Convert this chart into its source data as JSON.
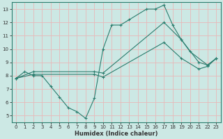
{
  "xlabel": "Humidex (Indice chaleur)",
  "bg_color": "#cce8e4",
  "grid_color": "#e8b8b8",
  "line_color": "#2a7d6e",
  "xlim": [
    -0.5,
    23.5
  ],
  "ylim": [
    4.5,
    13.5
  ],
  "xticks": [
    0,
    1,
    2,
    3,
    4,
    5,
    6,
    7,
    8,
    9,
    10,
    11,
    12,
    13,
    14,
    15,
    16,
    17,
    18,
    19,
    20,
    21,
    22,
    23
  ],
  "yticks": [
    5,
    6,
    7,
    8,
    9,
    10,
    11,
    12,
    13
  ],
  "line1_x": [
    0,
    1,
    2,
    3,
    4,
    5,
    6,
    7,
    8,
    9,
    10,
    11,
    12,
    13,
    15,
    16,
    17,
    18,
    19,
    20,
    22,
    23
  ],
  "line1_y": [
    7.8,
    8.3,
    8.0,
    8.0,
    7.2,
    6.4,
    5.6,
    5.3,
    4.8,
    6.3,
    10.0,
    11.8,
    11.8,
    12.2,
    13.0,
    13.0,
    13.3,
    11.8,
    10.7,
    9.8,
    8.8,
    9.3
  ],
  "line2_x": [
    0,
    2,
    9,
    10,
    17,
    19,
    21,
    22,
    23
  ],
  "line2_y": [
    7.8,
    8.3,
    8.3,
    8.2,
    12.0,
    10.7,
    9.0,
    8.8,
    9.3
  ],
  "line3_x": [
    0,
    2,
    9,
    10,
    17,
    19,
    21,
    22,
    23
  ],
  "line3_y": [
    7.8,
    8.1,
    8.1,
    7.9,
    10.5,
    9.3,
    8.5,
    8.7,
    9.3
  ]
}
